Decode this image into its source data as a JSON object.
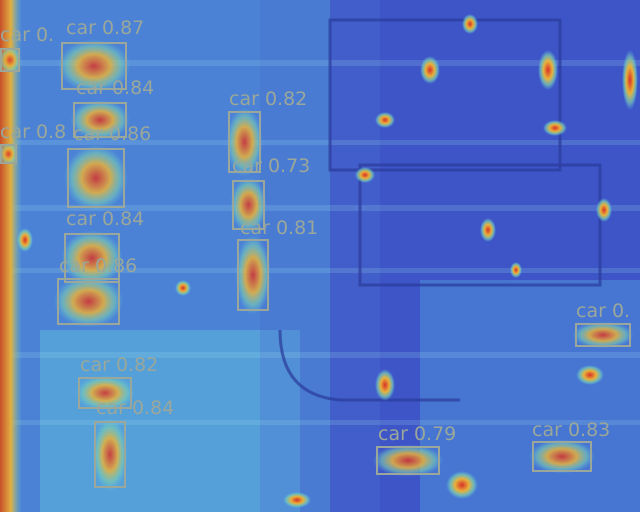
{
  "detections": [
    {
      "label": "car 0.87"
    },
    {
      "label": "car 0."
    },
    {
      "label": "car 0.84"
    },
    {
      "label": "car 0.86"
    },
    {
      "label": "car 0.8"
    },
    {
      "label": "car 0.82"
    },
    {
      "label": "car 0.73"
    },
    {
      "label": "car 0.84"
    },
    {
      "label": "car 0.81"
    },
    {
      "label": "car 0.86"
    },
    {
      "label": "car 0.82"
    },
    {
      "label": "car 0.84"
    },
    {
      "label": "car 0.79"
    },
    {
      "label": "car 0.83"
    },
    {
      "label": "car 0."
    }
  ],
  "colors": {
    "box": "#9aa79a",
    "heat_low": "#3a4fc4",
    "heat_mid": "#62c6de",
    "heat_high": "#d8302a"
  }
}
